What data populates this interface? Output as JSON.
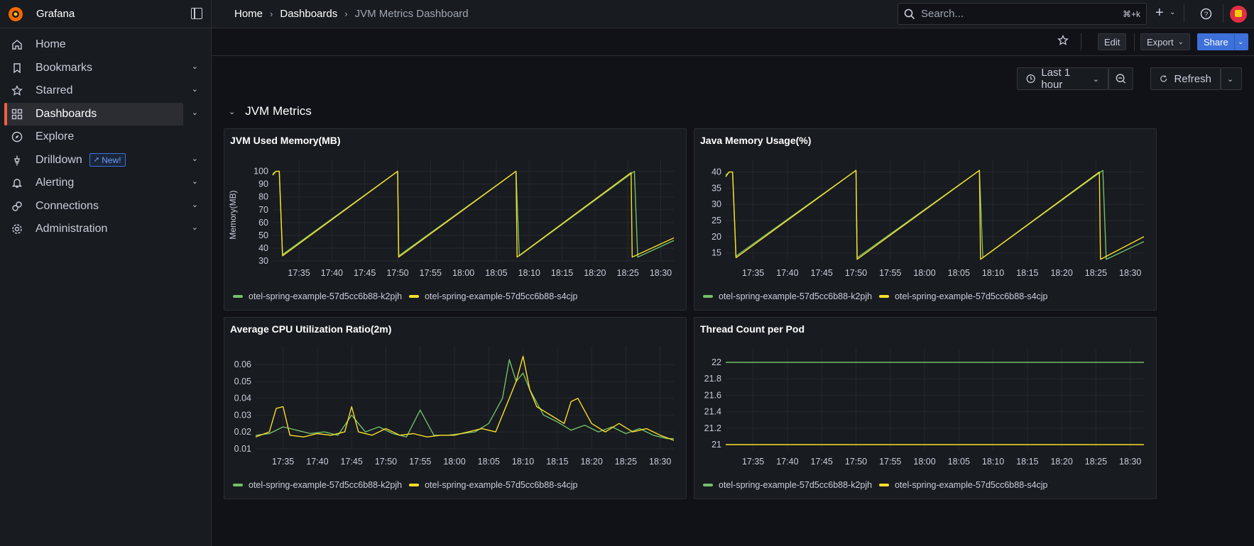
{
  "app": {
    "name": "Grafana"
  },
  "breadcrumb": [
    "Home",
    "Dashboards",
    "JVM Metrics Dashboard"
  ],
  "search": {
    "placeholder": "Search...",
    "shortcut": "⌘+k"
  },
  "nav": [
    {
      "label": "Home",
      "icon": "home-icon",
      "chevron": false
    },
    {
      "label": "Bookmarks",
      "icon": "bookmark-icon",
      "chevron": true
    },
    {
      "label": "Starred",
      "icon": "star-icon",
      "chevron": true
    },
    {
      "label": "Dashboards",
      "icon": "apps-icon",
      "chevron": true,
      "active": true
    },
    {
      "label": "Explore",
      "icon": "compass-icon",
      "chevron": false
    },
    {
      "label": "Drilldown",
      "icon": "drilldown-icon",
      "chevron": true,
      "badge": "New!"
    },
    {
      "label": "Alerting",
      "icon": "bell-icon",
      "chevron": true
    },
    {
      "label": "Connections",
      "icon": "link-icon",
      "chevron": true
    },
    {
      "label": "Administration",
      "icon": "cog-icon",
      "chevron": true
    }
  ],
  "toolbar": {
    "edit": "Edit",
    "export": "Export",
    "share": "Share"
  },
  "time": {
    "range": "Last 1 hour",
    "refresh": "Refresh"
  },
  "row": {
    "title": "JVM Metrics"
  },
  "colors": {
    "series_a": "#73bf69",
    "series_b": "#fade2a",
    "accent": "#3d71d9",
    "active_bar": "#f55f3e"
  },
  "legend": [
    "otel-spring-example-57d5cc6b88-k2pjh",
    "otel-spring-example-57d5cc6b88-s4cjp"
  ],
  "chart_data": [
    {
      "type": "line",
      "title": "JVM Used Memory(MB)",
      "ylabel": "Memory(MB)",
      "xticks": [
        "17:35",
        "17:40",
        "17:45",
        "17:50",
        "17:55",
        "18:00",
        "18:05",
        "18:10",
        "18:15",
        "18:20",
        "18:25",
        "18:30"
      ],
      "yticks": [
        30,
        40,
        50,
        60,
        70,
        80,
        90,
        100
      ],
      "xrange": [
        "17:31",
        "18:32"
      ],
      "ylim": [
        30,
        102
      ],
      "series": [
        {
          "name": "otel-spring-example-57d5cc6b88-k2pjh",
          "x": [
            "17:31",
            "17:31:30",
            "17:32",
            "17:32:30",
            "17:50",
            "17:50:10",
            "18:08",
            "18:08:30",
            "18:26",
            "18:26:30",
            "18:32"
          ],
          "y": [
            98,
            100,
            100,
            35,
            100,
            34,
            100,
            34,
            100,
            33,
            46
          ]
        },
        {
          "name": "otel-spring-example-57d5cc6b88-s4cjp",
          "x": [
            "17:31",
            "17:31:30",
            "17:32",
            "17:32:30",
            "17:50",
            "17:50:10",
            "18:08",
            "18:08:10",
            "18:25:30",
            "18:25:40",
            "18:32"
          ],
          "y": [
            97,
            100,
            100,
            34,
            100,
            33,
            100,
            33,
            99,
            33,
            48
          ]
        }
      ]
    },
    {
      "type": "line",
      "title": "Java Memory Usage(%)",
      "xticks": [
        "17:35",
        "17:40",
        "17:45",
        "17:50",
        "17:55",
        "18:00",
        "18:05",
        "18:10",
        "18:15",
        "18:20",
        "18:25",
        "18:30"
      ],
      "yticks": [
        15,
        20,
        25,
        30,
        35,
        40
      ],
      "xrange": [
        "17:31",
        "18:32"
      ],
      "ylim": [
        12.5,
        41
      ],
      "series": [
        {
          "name": "otel-spring-example-57d5cc6b88-k2pjh",
          "x": [
            "17:31",
            "17:31:30",
            "17:32",
            "17:32:30",
            "17:50",
            "17:50:10",
            "18:08",
            "18:08:30",
            "18:26",
            "18:26:30",
            "18:32"
          ],
          "y": [
            39,
            40,
            40,
            14,
            40.5,
            13.5,
            40.5,
            13.5,
            40.5,
            13,
            18.5
          ]
        },
        {
          "name": "otel-spring-example-57d5cc6b88-s4cjp",
          "x": [
            "17:31",
            "17:31:30",
            "17:32",
            "17:32:30",
            "17:50",
            "17:50:10",
            "18:08",
            "18:08:10",
            "18:25:30",
            "18:25:40",
            "18:32"
          ],
          "y": [
            38.5,
            40,
            40,
            13.5,
            40.5,
            13,
            40.5,
            13,
            40,
            13,
            20
          ]
        }
      ]
    },
    {
      "type": "line",
      "title": "Average CPU Utilization Ratio(2m)",
      "xticks": [
        "17:35",
        "17:40",
        "17:45",
        "17:50",
        "17:55",
        "18:00",
        "18:05",
        "18:10",
        "18:15",
        "18:20",
        "18:25",
        "18:30"
      ],
      "yticks": [
        0.01,
        0.02,
        0.03,
        0.04,
        0.05,
        0.06
      ],
      "xrange": [
        "17:31",
        "18:32"
      ],
      "ylim": [
        0.0095,
        0.066
      ],
      "series": [
        {
          "name": "otel-spring-example-57d5cc6b88-k2pjh",
          "x": [
            "17:31",
            "17:33",
            "17:35",
            "17:37",
            "17:39",
            "17:41",
            "17:43",
            "17:45",
            "17:47",
            "17:49",
            "17:51",
            "17:53",
            "17:55",
            "17:57",
            "17:59",
            "18:01",
            "18:03",
            "18:05",
            "18:07",
            "18:08",
            "18:09",
            "18:10",
            "18:11",
            "18:13",
            "18:15",
            "18:17",
            "18:19",
            "18:21",
            "18:23",
            "18:25",
            "18:27",
            "18:29",
            "18:31",
            "18:32"
          ],
          "y": [
            0.018,
            0.019,
            0.023,
            0.021,
            0.019,
            0.02,
            0.018,
            0.03,
            0.02,
            0.023,
            0.019,
            0.017,
            0.033,
            0.018,
            0.018,
            0.019,
            0.02,
            0.025,
            0.04,
            0.063,
            0.05,
            0.055,
            0.045,
            0.03,
            0.026,
            0.021,
            0.024,
            0.02,
            0.023,
            0.019,
            0.022,
            0.018,
            0.016,
            0.016
          ]
        },
        {
          "name": "otel-spring-example-57d5cc6b88-s4cjp",
          "x": [
            "17:31",
            "17:33",
            "17:34",
            "17:35",
            "17:36",
            "17:38",
            "17:40",
            "17:42",
            "17:44",
            "17:45",
            "17:46",
            "17:48",
            "17:50",
            "17:52",
            "17:54",
            "17:56",
            "17:58",
            "18:00",
            "18:02",
            "18:04",
            "18:06",
            "18:08",
            "18:09",
            "18:10",
            "18:11",
            "18:12",
            "18:14",
            "18:16",
            "18:17",
            "18:18",
            "18:20",
            "18:22",
            "18:24",
            "18:26",
            "18:28",
            "18:30",
            "18:32"
          ],
          "y": [
            0.017,
            0.02,
            0.034,
            0.035,
            0.018,
            0.017,
            0.019,
            0.018,
            0.02,
            0.035,
            0.02,
            0.018,
            0.022,
            0.018,
            0.019,
            0.017,
            0.018,
            0.018,
            0.02,
            0.022,
            0.02,
            0.04,
            0.05,
            0.065,
            0.045,
            0.035,
            0.03,
            0.025,
            0.038,
            0.04,
            0.025,
            0.02,
            0.025,
            0.02,
            0.022,
            0.018,
            0.015
          ]
        }
      ]
    },
    {
      "type": "line",
      "title": "Thread Count per Pod",
      "xticks": [
        "17:35",
        "17:40",
        "17:45",
        "17:50",
        "17:55",
        "18:00",
        "18:05",
        "18:10",
        "18:15",
        "18:20",
        "18:25",
        "18:30"
      ],
      "yticks": [
        "21",
        "21.2",
        "21.4",
        "21.6",
        "21.8",
        "22"
      ],
      "xrange": [
        "17:31",
        "18:32"
      ],
      "ylim": [
        20.94,
        22.06
      ],
      "series": [
        {
          "name": "otel-spring-example-57d5cc6b88-k2pjh",
          "x": [
            "17:31",
            "18:32"
          ],
          "y": [
            22,
            22
          ]
        },
        {
          "name": "otel-spring-example-57d5cc6b88-s4cjp",
          "x": [
            "17:31",
            "18:32"
          ],
          "y": [
            21,
            21
          ]
        }
      ]
    }
  ]
}
